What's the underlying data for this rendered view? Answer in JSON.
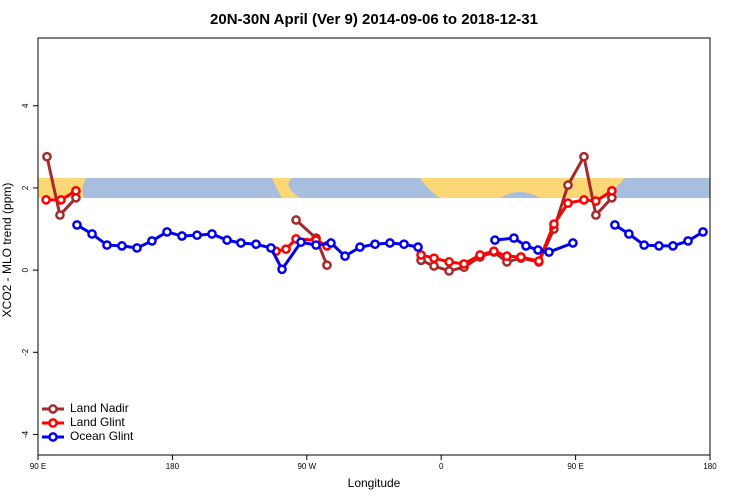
{
  "chart_data": {
    "type": "line",
    "title": "20N-30N April (Ver 9)   2014-09-06 to 2018-12-31",
    "x_label": "Longitude",
    "y_label": "XCO2 - MLO trend (ppm)",
    "xlim": [
      90,
      540
    ],
    "ylim": [
      -4.5,
      5.65
    ],
    "xticks": [
      {
        "value": 90,
        "label": "90 E"
      },
      180,
      {
        "value": 270,
        "label": "90 W"
      },
      {
        "value": 360,
        "label": "0"
      },
      {
        "value": 450,
        "label": "90 E"
      },
      {
        "value": 540,
        "label": "180"
      }
    ],
    "yticks": [
      -4,
      -2,
      0,
      2,
      4
    ],
    "legend": "bottom-left",
    "series": [
      {
        "name": "Land Nadir",
        "color": "#a52a2a",
        "x": [
          96,
          104.7,
          115.4,
          null,
          262.8,
          276.2,
          283.5,
          null,
          346.5,
          355.2,
          365.3,
          375.3,
          386,
          395.3,
          404,
          413.4,
          425.4,
          435.5,
          444.9,
          455.6,
          463.6,
          474.3
        ],
        "values": [
          2.76,
          1.34,
          1.76,
          null,
          1.22,
          0.78,
          0.12,
          null,
          0.24,
          0.1,
          -0.02,
          0.07,
          0.32,
          0.44,
          0.2,
          0.29,
          0.2,
          1.0,
          2.07,
          2.76,
          1.34,
          1.76
        ]
      },
      {
        "name": "Land Glint",
        "color": "#ff0000",
        "x": [
          95.4,
          105.4,
          115.4,
          null,
          249.4,
          256.1,
          262.8,
          276.2,
          283.5,
          null,
          346.5,
          355.2,
          365.3,
          375.3,
          386,
          395.3,
          404,
          413.4,
          425.4,
          435.5,
          444.9,
          455.6,
          463.6,
          474.3
        ],
        "values": [
          1.71,
          1.71,
          1.93,
          null,
          0.46,
          0.51,
          0.76,
          0.73,
          0.59,
          null,
          0.37,
          0.29,
          0.2,
          0.15,
          0.37,
          0.46,
          0.34,
          0.32,
          0.22,
          1.12,
          1.63,
          1.71,
          1.68,
          1.93
        ]
      },
      {
        "name": "Ocean Glint",
        "color": "#0000ee",
        "x": [
          116.1,
          126.2,
          136.2,
          146.2,
          156.3,
          166.3,
          176.4,
          186.4,
          196.5,
          206.5,
          216.6,
          225.9,
          236,
          246,
          253.4,
          266.1,
          276.2,
          286.2,
          295.6,
          305.6,
          315.7,
          325.7,
          335.1,
          344.5,
          null,
          396,
          408.7,
          416.8,
          424.8,
          432.2,
          448.2,
          null,
          476.3,
          485.7,
          495.9,
          505.8,
          515.2,
          525.3,
          535.3
        ],
        "values": [
          1.1,
          0.88,
          0.61,
          0.59,
          0.54,
          0.71,
          0.93,
          0.83,
          0.85,
          0.88,
          0.73,
          0.66,
          0.63,
          0.54,
          0.02,
          0.68,
          0.61,
          0.66,
          0.34,
          0.56,
          0.63,
          0.66,
          0.63,
          0.56,
          null,
          0.73,
          0.78,
          0.59,
          0.49,
          0.44,
          0.66,
          null,
          1.1,
          0.88,
          0.61,
          0.59,
          0.59,
          0.71,
          0.93
        ]
      }
    ]
  }
}
